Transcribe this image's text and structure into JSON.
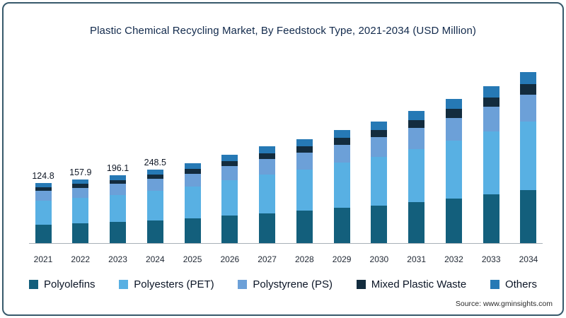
{
  "chart_data": {
    "type": "stacked-bar",
    "title": "Plastic Chemical Recycling Market, By Feedstock Type, 2021-2034 (USD Million)",
    "unit": "USD Million",
    "grid": false,
    "legend_position": "bottom",
    "categories": [
      "2021",
      "2022",
      "2023",
      "2024",
      "2025",
      "2026",
      "2027",
      "2028",
      "2029",
      "2030",
      "2031",
      "2032",
      "2033",
      "2034"
    ],
    "bar_value_labels": [
      "124.8",
      "157.9",
      "196.1",
      "248.5",
      "",
      "",
      "",
      "",
      "",
      "",
      "",
      "",
      "",
      ""
    ],
    "totals_estimated": [
      124.8,
      157.9,
      196.1,
      248.5,
      302,
      377,
      453,
      516,
      597,
      673,
      767,
      874,
      987,
      1113
    ],
    "series": [
      {
        "name": "Polyolefins",
        "color": "#135f7c",
        "values": [
          38.7,
          49.0,
          60.8,
          77.0,
          93.6,
          116.9,
          140.4,
          160.0,
          185.1,
          208.6,
          237.8,
          270.9,
          306.0,
          345.0
        ]
      },
      {
        "name": "Polyesters (PET)",
        "color": "#58b0e3",
        "values": [
          49.9,
          63.2,
          78.4,
          99.4,
          120.8,
          150.8,
          181.2,
          206.4,
          238.8,
          269.2,
          306.8,
          349.6,
          394.8,
          445.2
        ]
      },
      {
        "name": "Polystyrene (PS)",
        "color": "#6ca0d8",
        "values": [
          20.0,
          25.3,
          31.4,
          39.8,
          48.3,
          60.3,
          72.5,
          82.6,
          95.5,
          107.7,
          122.7,
          139.9,
          157.9,
          178.1
        ]
      },
      {
        "name": "Mixed Plastic Waste",
        "color": "#132c3e",
        "values": [
          7.5,
          9.5,
          11.8,
          14.9,
          18.1,
          22.6,
          27.2,
          31.0,
          35.8,
          40.4,
          46.0,
          52.4,
          59.2,
          66.8
        ]
      },
      {
        "name": "Others",
        "color": "#2679b5",
        "values": [
          8.7,
          10.9,
          13.7,
          17.4,
          21.2,
          26.4,
          31.7,
          36.0,
          41.8,
          47.1,
          53.7,
          61.2,
          69.1,
          77.9
        ]
      }
    ]
  },
  "source": "Source: www.gminsights.com"
}
